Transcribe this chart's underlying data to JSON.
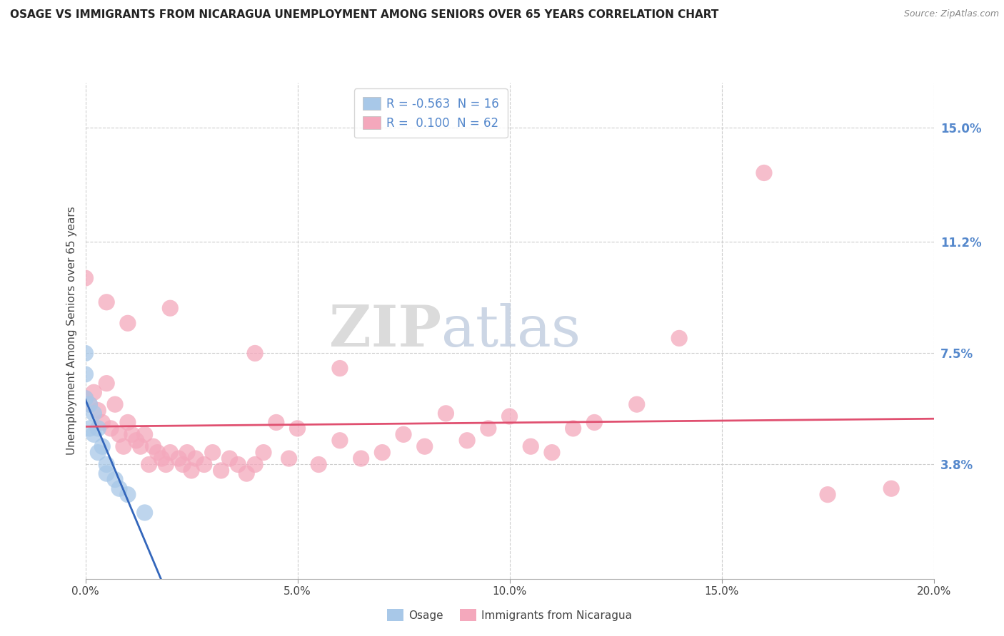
{
  "title": "OSAGE VS IMMIGRANTS FROM NICARAGUA UNEMPLOYMENT AMONG SENIORS OVER 65 YEARS CORRELATION CHART",
  "source": "Source: ZipAtlas.com",
  "ylabel": "Unemployment Among Seniors over 65 years",
  "xlabel_ticks": [
    "0.0%",
    "5.0%",
    "10.0%",
    "15.0%",
    "20.0%"
  ],
  "xlabel_vals": [
    0.0,
    0.05,
    0.1,
    0.15,
    0.2
  ],
  "ytick_labels": [
    "15.0%",
    "11.2%",
    "7.5%",
    "3.8%"
  ],
  "ytick_vals": [
    0.15,
    0.112,
    0.075,
    0.038
  ],
  "xlim": [
    0.0,
    0.2
  ],
  "ylim": [
    0.0,
    0.165
  ],
  "legend_entry1": "R = -0.563  N = 16",
  "legend_entry2": "R =  0.100  N = 62",
  "legend_label1": "Osage",
  "legend_label2": "Immigrants from Nicaragua",
  "osage_color": "#a8c8e8",
  "nicaragua_color": "#f4a8bc",
  "line_osage_color": "#3366bb",
  "line_nicaragua_color": "#e05070",
  "background_color": "#ffffff",
  "grid_color": "#cccccc",
  "right_tick_color": "#5588cc",
  "osage_points": [
    [
      0.0,
      0.06
    ],
    [
      0.0,
      0.068
    ],
    [
      0.0,
      0.075
    ],
    [
      0.001,
      0.058
    ],
    [
      0.001,
      0.05
    ],
    [
      0.002,
      0.055
    ],
    [
      0.002,
      0.048
    ],
    [
      0.003,
      0.05
    ],
    [
      0.003,
      0.042
    ],
    [
      0.004,
      0.044
    ],
    [
      0.005,
      0.038
    ],
    [
      0.005,
      0.035
    ],
    [
      0.007,
      0.033
    ],
    [
      0.008,
      0.03
    ],
    [
      0.01,
      0.028
    ],
    [
      0.014,
      0.022
    ]
  ],
  "nicaragua_points": [
    [
      0.0,
      0.06
    ],
    [
      0.001,
      0.058
    ],
    [
      0.002,
      0.062
    ],
    [
      0.003,
      0.056
    ],
    [
      0.004,
      0.052
    ],
    [
      0.005,
      0.065
    ],
    [
      0.006,
      0.05
    ],
    [
      0.007,
      0.058
    ],
    [
      0.008,
      0.048
    ],
    [
      0.009,
      0.044
    ],
    [
      0.01,
      0.052
    ],
    [
      0.011,
      0.048
    ],
    [
      0.012,
      0.046
    ],
    [
      0.013,
      0.044
    ],
    [
      0.014,
      0.048
    ],
    [
      0.015,
      0.038
    ],
    [
      0.016,
      0.044
    ],
    [
      0.017,
      0.042
    ],
    [
      0.018,
      0.04
    ],
    [
      0.019,
      0.038
    ],
    [
      0.02,
      0.042
    ],
    [
      0.022,
      0.04
    ],
    [
      0.023,
      0.038
    ],
    [
      0.024,
      0.042
    ],
    [
      0.025,
      0.036
    ],
    [
      0.026,
      0.04
    ],
    [
      0.028,
      0.038
    ],
    [
      0.03,
      0.042
    ],
    [
      0.032,
      0.036
    ],
    [
      0.034,
      0.04
    ],
    [
      0.036,
      0.038
    ],
    [
      0.038,
      0.035
    ],
    [
      0.04,
      0.038
    ],
    [
      0.042,
      0.042
    ],
    [
      0.045,
      0.052
    ],
    [
      0.048,
      0.04
    ],
    [
      0.05,
      0.05
    ],
    [
      0.055,
      0.038
    ],
    [
      0.06,
      0.046
    ],
    [
      0.065,
      0.04
    ],
    [
      0.07,
      0.042
    ],
    [
      0.075,
      0.048
    ],
    [
      0.08,
      0.044
    ],
    [
      0.085,
      0.055
    ],
    [
      0.09,
      0.046
    ],
    [
      0.095,
      0.05
    ],
    [
      0.1,
      0.054
    ],
    [
      0.105,
      0.044
    ],
    [
      0.11,
      0.042
    ],
    [
      0.115,
      0.05
    ],
    [
      0.12,
      0.052
    ],
    [
      0.13,
      0.058
    ],
    [
      0.01,
      0.085
    ],
    [
      0.02,
      0.09
    ],
    [
      0.04,
      0.075
    ],
    [
      0.06,
      0.07
    ],
    [
      0.0,
      0.1
    ],
    [
      0.005,
      0.092
    ],
    [
      0.14,
      0.08
    ],
    [
      0.16,
      0.135
    ],
    [
      0.175,
      0.028
    ],
    [
      0.19,
      0.03
    ]
  ]
}
